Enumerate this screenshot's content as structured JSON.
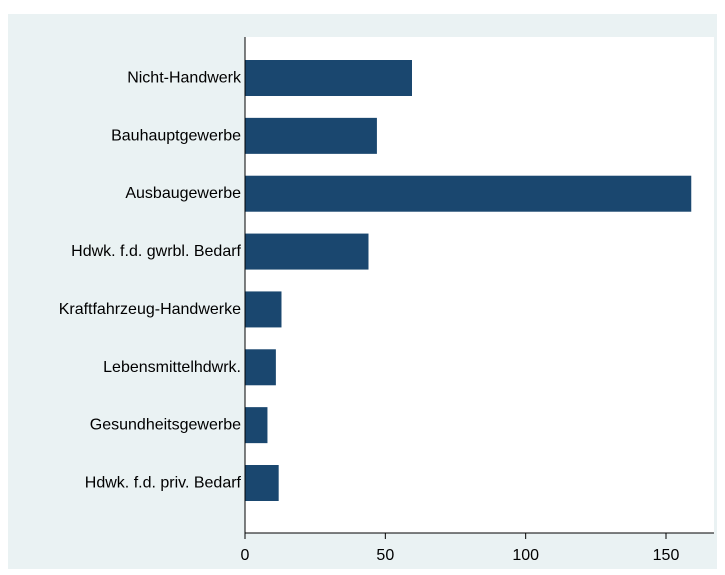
{
  "chart_data": {
    "type": "bar",
    "orientation": "horizontal",
    "title": "",
    "xlabel": "",
    "ylabel": "",
    "categories": [
      "Nicht-Handwerk",
      "Bauhauptgewerbe",
      "Ausbaugewerbe",
      "Hdwk. f.d. gwrbl. Bedarf",
      "Kraftfahrzeug-Handwerke",
      "Lebensmittelhdwrk.",
      "Gesundheitsgewerbe",
      "Hdwk. f.d. priv. Bedarf"
    ],
    "values": [
      59.5,
      47,
      159,
      44,
      13,
      11,
      8,
      12
    ],
    "xlim": [
      0,
      165
    ],
    "xticks": [
      0,
      50,
      100,
      150
    ],
    "grid": false,
    "colors": {
      "bar": "#1a476f",
      "background": "#eaf2f3",
      "plot_area": "#ffffff",
      "axis": "#000000"
    }
  }
}
